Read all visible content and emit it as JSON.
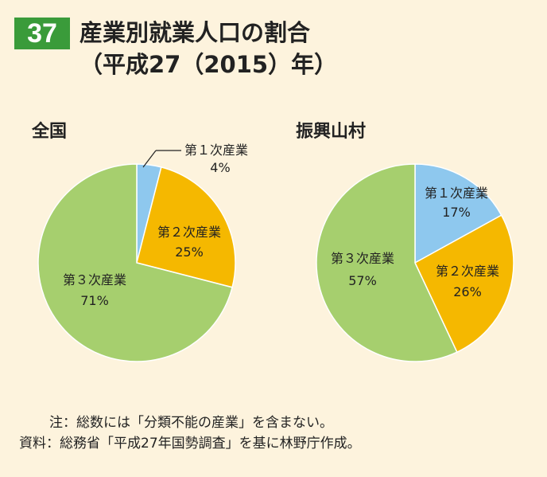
{
  "header": {
    "badge": "37",
    "title_line1": "産業別就業人口の割合",
    "title_line2": "（平成27（2015）年）"
  },
  "chart_data": [
    {
      "type": "pie",
      "title": "全国",
      "slices": [
        {
          "label": "第１次産業",
          "value": 4,
          "value_label": "4%",
          "color": "#8ec8ee"
        },
        {
          "label": "第２次産業",
          "value": 25,
          "value_label": "25%",
          "color": "#f5b800"
        },
        {
          "label": "第３次産業",
          "value": 71,
          "value_label": "71%",
          "color": "#a6cf6e"
        }
      ]
    },
    {
      "type": "pie",
      "title": "振興山村",
      "slices": [
        {
          "label": "第１次産業",
          "value": 17,
          "value_label": "17%",
          "color": "#8ec8ee"
        },
        {
          "label": "第２次産業",
          "value": 26,
          "value_label": "26%",
          "color": "#f5b800"
        },
        {
          "label": "第３次産業",
          "value": 57,
          "value_label": "57%",
          "color": "#a6cf6e"
        }
      ]
    }
  ],
  "footer": {
    "note1": "注：総数には「分類不能の産業」を含まない。",
    "note2": "資料：総務省「平成27年国勢調査」を基に林野庁作成。"
  }
}
